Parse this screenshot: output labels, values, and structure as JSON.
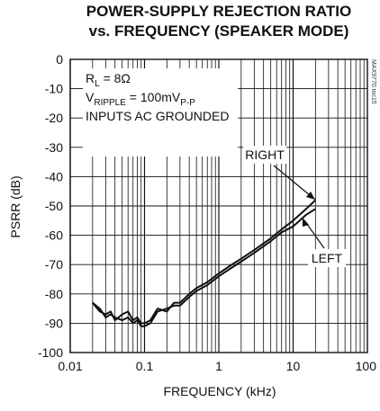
{
  "chart_data": {
    "type": "line",
    "title_line1": "POWER-SUPPLY REJECTION RATIO",
    "title_line2": "vs. FREQUENCY (SPEAKER MODE)",
    "xlabel": "FREQUENCY (kHz)",
    "ylabel": "PSRR (dB)",
    "x_scale": "log",
    "xlim": [
      0.01,
      100
    ],
    "ylim": [
      -100,
      0
    ],
    "x_ticks": [
      "0.01",
      "0.1",
      "1",
      "10",
      "100"
    ],
    "y_ticks": [
      "0",
      "-10",
      "-20",
      "-30",
      "-40",
      "-50",
      "-60",
      "-70",
      "-80",
      "-90",
      "-100"
    ],
    "grid": true,
    "conditions": {
      "rl_main": "R",
      "rl_sub": "L",
      "rl_value": " = 8Ω",
      "vr_main": "V",
      "vr_sub": "RIPPLE",
      "vr_mid": " = 100mV",
      "vr_sub2": "P-P",
      "inputs": "INPUTS AC GROUNDED"
    },
    "part_code": "MAX9770 toc15",
    "series": [
      {
        "name": "RIGHT",
        "x": [
          0.02,
          0.025,
          0.03,
          0.035,
          0.04,
          0.05,
          0.06,
          0.07,
          0.08,
          0.09,
          0.1,
          0.12,
          0.15,
          0.2,
          0.25,
          0.3,
          0.4,
          0.5,
          0.7,
          1,
          1.5,
          2,
          3,
          5,
          7,
          10,
          15,
          20
        ],
        "y": [
          -83,
          -86,
          -87,
          -86,
          -89,
          -87,
          -86,
          -89,
          -88,
          -90,
          -90,
          -89,
          -85,
          -86,
          -83,
          -83,
          -80,
          -78,
          -76,
          -73,
          -70,
          -68,
          -65,
          -61,
          -58,
          -55,
          -51,
          -48
        ]
      },
      {
        "name": "LEFT",
        "x": [
          0.02,
          0.025,
          0.03,
          0.035,
          0.04,
          0.05,
          0.06,
          0.07,
          0.08,
          0.09,
          0.1,
          0.12,
          0.15,
          0.2,
          0.25,
          0.3,
          0.4,
          0.5,
          0.7,
          1,
          1.5,
          2,
          3,
          5,
          7,
          10,
          15,
          20
        ],
        "y": [
          -83,
          -85,
          -88,
          -87,
          -88,
          -89,
          -88,
          -90,
          -89,
          -91,
          -91,
          -90,
          -86,
          -85,
          -84,
          -84,
          -81,
          -79,
          -77,
          -74,
          -71,
          -69,
          -66,
          -62,
          -59,
          -57,
          -53,
          -51
        ]
      }
    ],
    "colors": {
      "line": "#111111",
      "grid": "#111111",
      "background": "#ffffff"
    }
  }
}
